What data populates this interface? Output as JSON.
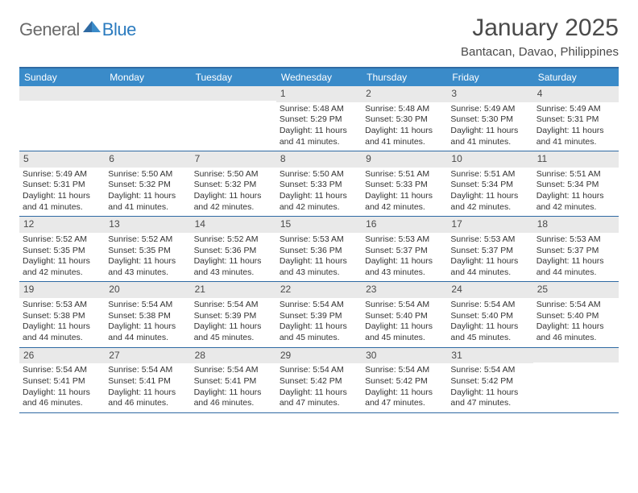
{
  "logo": {
    "general": "General",
    "blue": "Blue"
  },
  "title": "January 2025",
  "location": "Bantacan, Davao, Philippines",
  "colors": {
    "header_bar": "#3a8bc9",
    "border": "#2f6aa3",
    "daynum_bg": "#e9e9e9",
    "text": "#333333",
    "logo_gray": "#6a6a6a",
    "logo_blue": "#2b7bbf",
    "bg": "#ffffff"
  },
  "document_type": "calendar",
  "weekdays": [
    "Sunday",
    "Monday",
    "Tuesday",
    "Wednesday",
    "Thursday",
    "Friday",
    "Saturday"
  ],
  "layout": {
    "columns": 7,
    "rows": 5,
    "cell_fontsize": 10.5,
    "header_fontsize": 12
  },
  "weeks": [
    [
      {
        "day": "",
        "sunrise": "",
        "sunset": "",
        "daylight": ""
      },
      {
        "day": "",
        "sunrise": "",
        "sunset": "",
        "daylight": ""
      },
      {
        "day": "",
        "sunrise": "",
        "sunset": "",
        "daylight": ""
      },
      {
        "day": "1",
        "sunrise": "Sunrise: 5:48 AM",
        "sunset": "Sunset: 5:29 PM",
        "daylight": "Daylight: 11 hours and 41 minutes."
      },
      {
        "day": "2",
        "sunrise": "Sunrise: 5:48 AM",
        "sunset": "Sunset: 5:30 PM",
        "daylight": "Daylight: 11 hours and 41 minutes."
      },
      {
        "day": "3",
        "sunrise": "Sunrise: 5:49 AM",
        "sunset": "Sunset: 5:30 PM",
        "daylight": "Daylight: 11 hours and 41 minutes."
      },
      {
        "day": "4",
        "sunrise": "Sunrise: 5:49 AM",
        "sunset": "Sunset: 5:31 PM",
        "daylight": "Daylight: 11 hours and 41 minutes."
      }
    ],
    [
      {
        "day": "5",
        "sunrise": "Sunrise: 5:49 AM",
        "sunset": "Sunset: 5:31 PM",
        "daylight": "Daylight: 11 hours and 41 minutes."
      },
      {
        "day": "6",
        "sunrise": "Sunrise: 5:50 AM",
        "sunset": "Sunset: 5:32 PM",
        "daylight": "Daylight: 11 hours and 41 minutes."
      },
      {
        "day": "7",
        "sunrise": "Sunrise: 5:50 AM",
        "sunset": "Sunset: 5:32 PM",
        "daylight": "Daylight: 11 hours and 42 minutes."
      },
      {
        "day": "8",
        "sunrise": "Sunrise: 5:50 AM",
        "sunset": "Sunset: 5:33 PM",
        "daylight": "Daylight: 11 hours and 42 minutes."
      },
      {
        "day": "9",
        "sunrise": "Sunrise: 5:51 AM",
        "sunset": "Sunset: 5:33 PM",
        "daylight": "Daylight: 11 hours and 42 minutes."
      },
      {
        "day": "10",
        "sunrise": "Sunrise: 5:51 AM",
        "sunset": "Sunset: 5:34 PM",
        "daylight": "Daylight: 11 hours and 42 minutes."
      },
      {
        "day": "11",
        "sunrise": "Sunrise: 5:51 AM",
        "sunset": "Sunset: 5:34 PM",
        "daylight": "Daylight: 11 hours and 42 minutes."
      }
    ],
    [
      {
        "day": "12",
        "sunrise": "Sunrise: 5:52 AM",
        "sunset": "Sunset: 5:35 PM",
        "daylight": "Daylight: 11 hours and 42 minutes."
      },
      {
        "day": "13",
        "sunrise": "Sunrise: 5:52 AM",
        "sunset": "Sunset: 5:35 PM",
        "daylight": "Daylight: 11 hours and 43 minutes."
      },
      {
        "day": "14",
        "sunrise": "Sunrise: 5:52 AM",
        "sunset": "Sunset: 5:36 PM",
        "daylight": "Daylight: 11 hours and 43 minutes."
      },
      {
        "day": "15",
        "sunrise": "Sunrise: 5:53 AM",
        "sunset": "Sunset: 5:36 PM",
        "daylight": "Daylight: 11 hours and 43 minutes."
      },
      {
        "day": "16",
        "sunrise": "Sunrise: 5:53 AM",
        "sunset": "Sunset: 5:37 PM",
        "daylight": "Daylight: 11 hours and 43 minutes."
      },
      {
        "day": "17",
        "sunrise": "Sunrise: 5:53 AM",
        "sunset": "Sunset: 5:37 PM",
        "daylight": "Daylight: 11 hours and 44 minutes."
      },
      {
        "day": "18",
        "sunrise": "Sunrise: 5:53 AM",
        "sunset": "Sunset: 5:37 PM",
        "daylight": "Daylight: 11 hours and 44 minutes."
      }
    ],
    [
      {
        "day": "19",
        "sunrise": "Sunrise: 5:53 AM",
        "sunset": "Sunset: 5:38 PM",
        "daylight": "Daylight: 11 hours and 44 minutes."
      },
      {
        "day": "20",
        "sunrise": "Sunrise: 5:54 AM",
        "sunset": "Sunset: 5:38 PM",
        "daylight": "Daylight: 11 hours and 44 minutes."
      },
      {
        "day": "21",
        "sunrise": "Sunrise: 5:54 AM",
        "sunset": "Sunset: 5:39 PM",
        "daylight": "Daylight: 11 hours and 45 minutes."
      },
      {
        "day": "22",
        "sunrise": "Sunrise: 5:54 AM",
        "sunset": "Sunset: 5:39 PM",
        "daylight": "Daylight: 11 hours and 45 minutes."
      },
      {
        "day": "23",
        "sunrise": "Sunrise: 5:54 AM",
        "sunset": "Sunset: 5:40 PM",
        "daylight": "Daylight: 11 hours and 45 minutes."
      },
      {
        "day": "24",
        "sunrise": "Sunrise: 5:54 AM",
        "sunset": "Sunset: 5:40 PM",
        "daylight": "Daylight: 11 hours and 45 minutes."
      },
      {
        "day": "25",
        "sunrise": "Sunrise: 5:54 AM",
        "sunset": "Sunset: 5:40 PM",
        "daylight": "Daylight: 11 hours and 46 minutes."
      }
    ],
    [
      {
        "day": "26",
        "sunrise": "Sunrise: 5:54 AM",
        "sunset": "Sunset: 5:41 PM",
        "daylight": "Daylight: 11 hours and 46 minutes."
      },
      {
        "day": "27",
        "sunrise": "Sunrise: 5:54 AM",
        "sunset": "Sunset: 5:41 PM",
        "daylight": "Daylight: 11 hours and 46 minutes."
      },
      {
        "day": "28",
        "sunrise": "Sunrise: 5:54 AM",
        "sunset": "Sunset: 5:41 PM",
        "daylight": "Daylight: 11 hours and 46 minutes."
      },
      {
        "day": "29",
        "sunrise": "Sunrise: 5:54 AM",
        "sunset": "Sunset: 5:42 PM",
        "daylight": "Daylight: 11 hours and 47 minutes."
      },
      {
        "day": "30",
        "sunrise": "Sunrise: 5:54 AM",
        "sunset": "Sunset: 5:42 PM",
        "daylight": "Daylight: 11 hours and 47 minutes."
      },
      {
        "day": "31",
        "sunrise": "Sunrise: 5:54 AM",
        "sunset": "Sunset: 5:42 PM",
        "daylight": "Daylight: 11 hours and 47 minutes."
      },
      {
        "day": "",
        "sunrise": "",
        "sunset": "",
        "daylight": ""
      }
    ]
  ]
}
